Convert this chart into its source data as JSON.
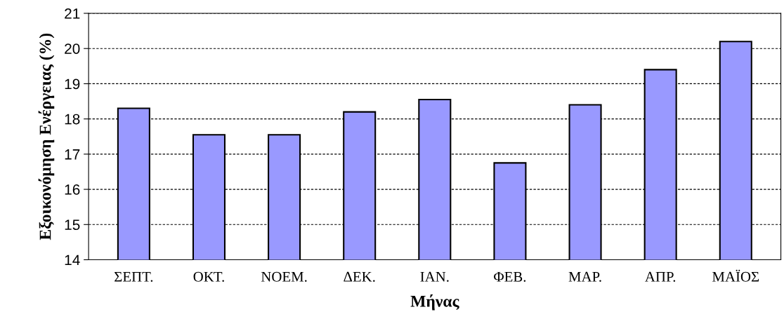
{
  "chart_data": {
    "type": "bar",
    "xlabel": "Μήνας",
    "ylabel": "Εξοικονόμηση Ενέργειας (%)",
    "categories": [
      "ΣΕΠΤ.",
      "ΟΚΤ.",
      "ΝΟΕΜ.",
      "ΔΕΚ.",
      "ΙΑΝ.",
      "ΦΕΒ.",
      "ΜΑΡ.",
      "ΑΠΡ.",
      "ΜΑΪΟΣ"
    ],
    "values": [
      18.3,
      17.55,
      17.55,
      18.2,
      18.55,
      16.75,
      18.4,
      19.4,
      20.2
    ],
    "color": "#9999ff",
    "ylim": [
      14,
      21
    ],
    "yticks": [
      14,
      15,
      16,
      17,
      18,
      19,
      20,
      21
    ],
    "grid": "y"
  }
}
